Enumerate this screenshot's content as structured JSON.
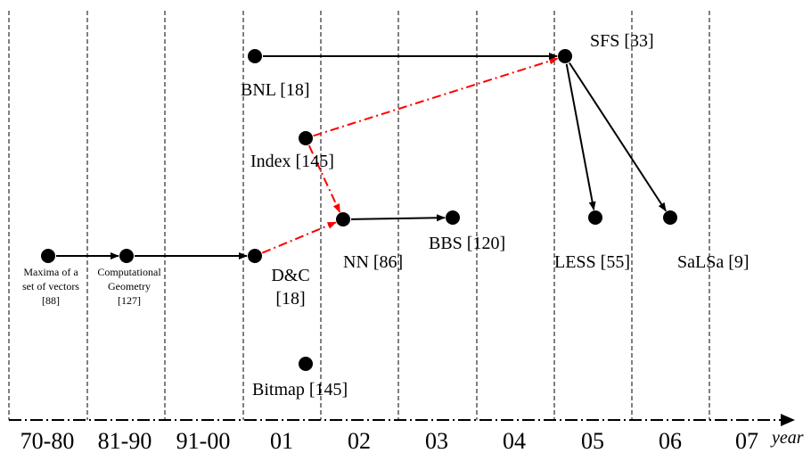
{
  "axis": {
    "periods": [
      "70-80",
      "81-90",
      "91-00",
      "01",
      "02",
      "03",
      "04",
      "05",
      "06",
      "07"
    ],
    "unit_label": "year"
  },
  "nodes": [
    {
      "id": "maxima",
      "period": "70-80",
      "label_lines": [
        "Maxima of a",
        "set of vectors",
        "[88]"
      ],
      "small": true
    },
    {
      "id": "compgeo",
      "period": "81-90",
      "label_lines": [
        "Computational",
        "Geometry",
        "[127]"
      ],
      "small": true
    },
    {
      "id": "dc",
      "period": "01",
      "label_lines": [
        "D&C",
        "[18]"
      ],
      "small": false
    },
    {
      "id": "bnl",
      "period": "01",
      "label_lines": [
        "BNL [18]"
      ],
      "small": false
    },
    {
      "id": "index",
      "period": "01",
      "label_lines": [
        "Index [145]"
      ],
      "small": false
    },
    {
      "id": "bitmap",
      "period": "01",
      "label_lines": [
        "Bitmap [145]"
      ],
      "small": false
    },
    {
      "id": "nn",
      "period": "02",
      "label_lines": [
        "NN [86]"
      ],
      "small": false
    },
    {
      "id": "bbs",
      "period": "03",
      "label_lines": [
        "BBS [120]"
      ],
      "small": false
    },
    {
      "id": "sfs",
      "period": "04",
      "label_lines": [
        "SFS [33]"
      ],
      "small": false
    },
    {
      "id": "less",
      "period": "05",
      "label_lines": [
        "LESS [55]"
      ],
      "small": false
    },
    {
      "id": "salsa",
      "period": "06",
      "label_lines": [
        "SaLSa [9]"
      ],
      "small": false
    }
  ],
  "edges": [
    {
      "from": "maxima",
      "to": "compgeo",
      "style": "solid"
    },
    {
      "from": "compgeo",
      "to": "dc",
      "style": "solid"
    },
    {
      "from": "dc",
      "to": "nn",
      "style": "dash-dot"
    },
    {
      "from": "index",
      "to": "nn",
      "style": "dash-dot"
    },
    {
      "from": "index",
      "to": "sfs",
      "style": "dash-dot"
    },
    {
      "from": "nn",
      "to": "bbs",
      "style": "solid"
    },
    {
      "from": "bnl",
      "to": "sfs",
      "style": "solid"
    },
    {
      "from": "sfs",
      "to": "less",
      "style": "solid"
    },
    {
      "from": "sfs",
      "to": "salsa",
      "style": "solid"
    }
  ],
  "colors": {
    "solid_edge": "#000000",
    "dash_dot_edge": "#ff0000",
    "node": "#000000",
    "divider": "#000000"
  }
}
